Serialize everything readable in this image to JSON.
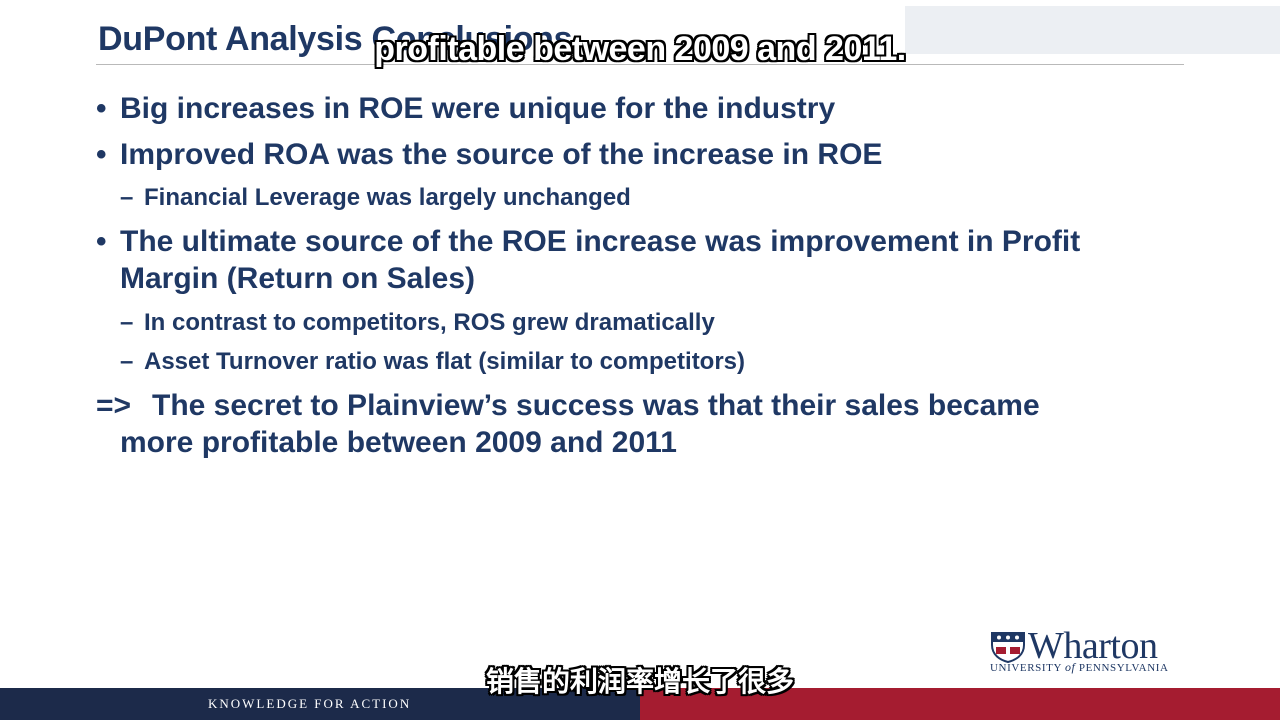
{
  "slide": {
    "title": "DuPont Analysis Conclusions",
    "bullets": [
      {
        "level": 1,
        "marker": "•",
        "text": "Big increases in ROE were unique for the industry"
      },
      {
        "level": 1,
        "marker": "•",
        "text": "Improved ROA was the source of the increase in ROE"
      },
      {
        "level": 2,
        "marker": "–",
        "text": "Financial Leverage was largely unchanged"
      },
      {
        "level": 1,
        "marker": "•",
        "text": "The ultimate source of the ROE increase was improvement in Profit"
      },
      {
        "level": 1,
        "marker": "",
        "text": "Margin (Return on Sales)"
      },
      {
        "level": 2,
        "marker": "–",
        "text": "In contrast to competitors, ROS grew dramatically"
      },
      {
        "level": 2,
        "marker": "–",
        "text": "Asset Turnover ratio was flat (similar to competitors)"
      },
      {
        "level": 1,
        "marker": "=>",
        "text": "The secret to Plainview’s success was that their sales became"
      },
      {
        "level": 1,
        "marker": "",
        "text": "more profitable between 2009 and 2011"
      }
    ]
  },
  "subtitles": {
    "top": "profitable between 2009 and 2011.",
    "bottom": "销售的利润率增长了很多"
  },
  "branding": {
    "logo_word": "Wharton",
    "logo_university": "UNIVERSITY",
    "logo_of": "of",
    "logo_penn": "PENNSYLVANIA",
    "tagline": "KNOWLEDGE FOR ACTION"
  },
  "colors": {
    "text_navy": "#1f3864",
    "bottom_navy": "#1c2a4a",
    "bottom_red": "#a51c30"
  }
}
